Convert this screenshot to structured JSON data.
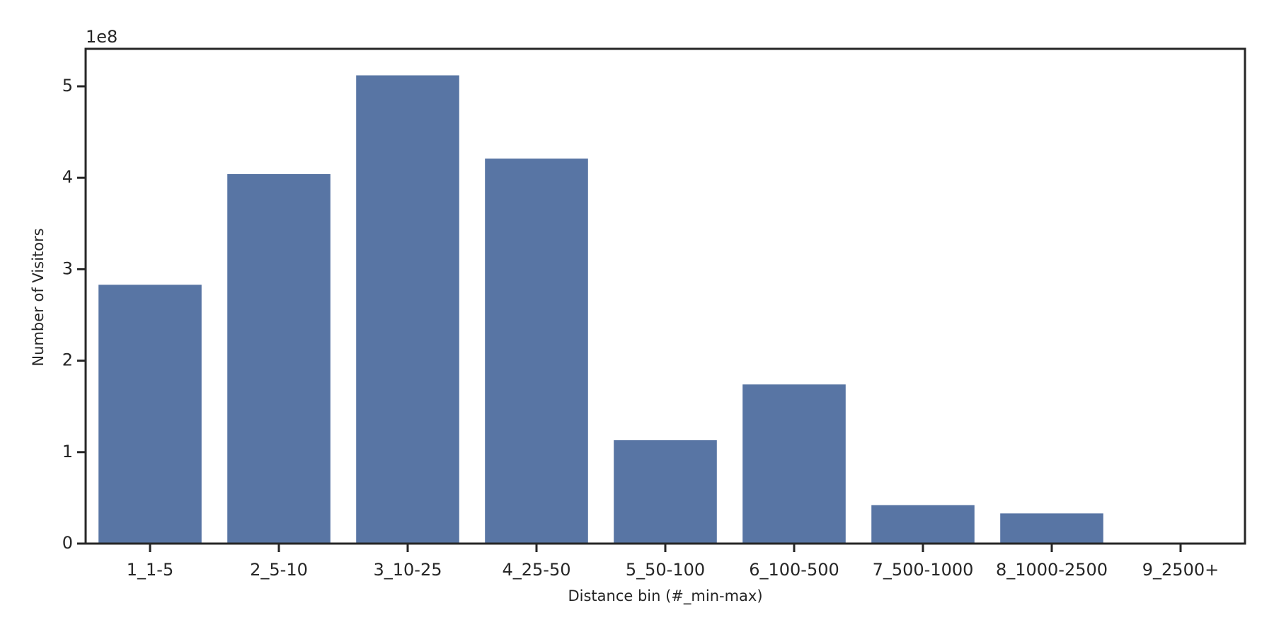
{
  "chart_data": {
    "type": "bar",
    "x_label": "Distance bin (#_min-max)",
    "y_label": "Number of Visitors",
    "y_offset_label": "1e8",
    "categories": [
      "1_1-5",
      "2_5-10",
      "3_10-25",
      "4_25-50",
      "5_50-100",
      "6_100-500",
      "7_500-1000",
      "8_1000-2500",
      "9_2500+"
    ],
    "values": [
      2.83,
      4.04,
      5.12,
      4.21,
      1.13,
      1.74,
      0.42,
      0.33,
      0
    ],
    "color": "#5875a4",
    "ylim": [
      0,
      5.41
    ],
    "yticks": [
      0,
      1,
      2,
      3,
      4,
      5
    ],
    "grid": false
  }
}
